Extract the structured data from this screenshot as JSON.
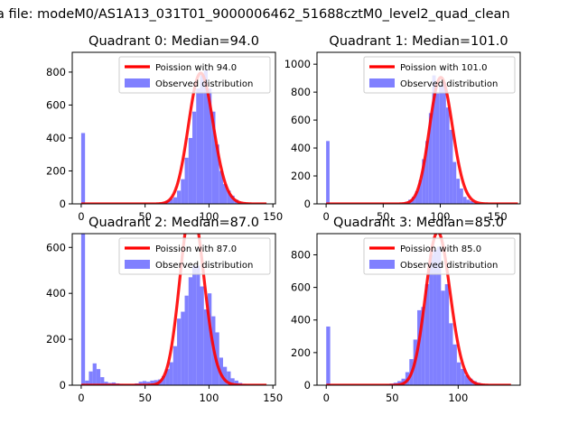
{
  "suptitle": "a file: modeM0/AS1A13_031T01_9000006462_51688cztM0_level2_quad_clean",
  "colors": {
    "hist": "#8080ff",
    "curve": "#ff0000",
    "axis": "#000000"
  },
  "chart_data": [
    {
      "type": "bar",
      "title": "Quadrant 0: Median=94.0",
      "median": 94.0,
      "xlim": [
        -7,
        152
      ],
      "ylim": [
        0,
        920
      ],
      "xticks": [
        "0",
        "50",
        "100",
        "150"
      ],
      "xtick_values": [
        0,
        50,
        100,
        150
      ],
      "yticks": [
        "0",
        "200",
        "400",
        "600",
        "800"
      ],
      "ytick_values": [
        0,
        200,
        400,
        600,
        800
      ],
      "legend_position": "top-right",
      "series": [
        {
          "name": "Poission with 94.0",
          "kind": "line",
          "mean": 94.0,
          "x_range": [
            0,
            145
          ]
        },
        {
          "name": "Observed distribution",
          "kind": "histogram",
          "bins": [
            [
              0,
              3,
              430
            ],
            [
              3,
              6,
              3
            ],
            [
              6,
              9,
              3
            ],
            [
              9,
              12,
              3
            ],
            [
              60,
              63,
              5
            ],
            [
              63,
              66,
              10
            ],
            [
              66,
              69,
              20
            ],
            [
              69,
              72,
              30
            ],
            [
              72,
              75,
              40
            ],
            [
              75,
              78,
              80
            ],
            [
              78,
              81,
              150
            ],
            [
              81,
              84,
              280
            ],
            [
              84,
              87,
              400
            ],
            [
              87,
              90,
              560
            ],
            [
              90,
              93,
              700
            ],
            [
              93,
              96,
              780
            ],
            [
              96,
              99,
              810
            ],
            [
              99,
              102,
              700
            ],
            [
              102,
              105,
              560
            ],
            [
              105,
              108,
              360
            ],
            [
              108,
              111,
              200
            ],
            [
              111,
              114,
              120
            ],
            [
              114,
              117,
              80
            ],
            [
              117,
              120,
              50
            ],
            [
              120,
              123,
              25
            ],
            [
              123,
              126,
              12
            ],
            [
              126,
              129,
              8
            ],
            [
              129,
              132,
              5
            ],
            [
              132,
              135,
              3
            ],
            [
              135,
              138,
              2
            ]
          ]
        }
      ]
    },
    {
      "type": "bar",
      "title": "Quadrant 1: Median=101.0",
      "median": 101.0,
      "xlim": [
        -8,
        170
      ],
      "ylim": [
        0,
        1085
      ],
      "xticks": [
        "0",
        "50",
        "100",
        "150"
      ],
      "xtick_values": [
        0,
        50,
        100,
        150
      ],
      "yticks": [
        "0",
        "200",
        "400",
        "600",
        "800",
        "1000"
      ],
      "ytick_values": [
        0,
        200,
        400,
        600,
        800,
        1000
      ],
      "legend_position": "top-right",
      "series": [
        {
          "name": "Poission with 101.0",
          "kind": "line",
          "mean": 101.0,
          "x_range": [
            0,
            168
          ]
        },
        {
          "name": "Observed distribution",
          "kind": "histogram",
          "bins": [
            [
              0,
              3,
              450
            ],
            [
              3,
              6,
              3
            ],
            [
              6,
              9,
              3
            ],
            [
              66,
              69,
              5
            ],
            [
              69,
              72,
              15
            ],
            [
              72,
              75,
              30
            ],
            [
              75,
              78,
              50
            ],
            [
              78,
              81,
              90
            ],
            [
              81,
              84,
              170
            ],
            [
              84,
              87,
              320
            ],
            [
              87,
              90,
              450
            ],
            [
              90,
              93,
              650
            ],
            [
              93,
              96,
              920
            ],
            [
              96,
              99,
              790
            ],
            [
              99,
              102,
              850
            ],
            [
              102,
              105,
              870
            ],
            [
              105,
              108,
              690
            ],
            [
              108,
              111,
              530
            ],
            [
              111,
              114,
              300
            ],
            [
              114,
              117,
              180
            ],
            [
              117,
              120,
              110
            ],
            [
              120,
              123,
              50
            ],
            [
              123,
              126,
              30
            ],
            [
              126,
              129,
              20
            ],
            [
              129,
              132,
              10
            ],
            [
              132,
              135,
              6
            ],
            [
              135,
              138,
              4
            ],
            [
              138,
              141,
              3
            ],
            [
              141,
              144,
              2
            ]
          ]
        }
      ]
    },
    {
      "type": "bar",
      "title": "Quadrant 2: Median=87.0",
      "median": 87.0,
      "xlim": [
        -7,
        152
      ],
      "ylim": [
        0,
        660
      ],
      "xticks": [
        "0",
        "50",
        "100",
        "150"
      ],
      "xtick_values": [
        0,
        50,
        100,
        150
      ],
      "yticks": [
        "0",
        "200",
        "400",
        "600"
      ],
      "ytick_values": [
        0,
        200,
        400,
        600
      ],
      "legend_position": "top-right",
      "series": [
        {
          "name": "Poission with 87.0",
          "kind": "line",
          "mean": 87.0,
          "x_range": [
            0,
            145
          ]
        },
        {
          "name": "Observed distribution",
          "kind": "histogram",
          "bins": [
            [
              0,
              3,
              680
            ],
            [
              3,
              6,
              20
            ],
            [
              6,
              9,
              60
            ],
            [
              9,
              12,
              95
            ],
            [
              12,
              15,
              70
            ],
            [
              15,
              18,
              35
            ],
            [
              18,
              21,
              15
            ],
            [
              21,
              24,
              10
            ],
            [
              24,
              27,
              12
            ],
            [
              27,
              30,
              8
            ],
            [
              30,
              33,
              6
            ],
            [
              33,
              36,
              5
            ],
            [
              36,
              39,
              5
            ],
            [
              39,
              42,
              5
            ],
            [
              42,
              45,
              8
            ],
            [
              45,
              48,
              15
            ],
            [
              48,
              51,
              18
            ],
            [
              51,
              54,
              15
            ],
            [
              54,
              57,
              20
            ],
            [
              57,
              60,
              22
            ],
            [
              60,
              63,
              25
            ],
            [
              63,
              66,
              40
            ],
            [
              66,
              69,
              70
            ],
            [
              69,
              72,
              100
            ],
            [
              72,
              75,
              170
            ],
            [
              75,
              78,
              290
            ],
            [
              78,
              81,
              320
            ],
            [
              81,
              84,
              390
            ],
            [
              84,
              87,
              470
            ],
            [
              87,
              90,
              520
            ],
            [
              90,
              93,
              520
            ],
            [
              93,
              96,
              430
            ],
            [
              96,
              99,
              330
            ],
            [
              99,
              102,
              400
            ],
            [
              102,
              105,
              300
            ],
            [
              105,
              108,
              230
            ],
            [
              108,
              111,
              120
            ],
            [
              111,
              114,
              80
            ],
            [
              114,
              117,
              60
            ],
            [
              117,
              120,
              30
            ],
            [
              120,
              123,
              20
            ],
            [
              123,
              126,
              10
            ],
            [
              126,
              129,
              6
            ],
            [
              129,
              132,
              3
            ],
            [
              132,
              135,
              2
            ]
          ]
        }
      ]
    },
    {
      "type": "bar",
      "title": "Quadrant 3: Median=85.0",
      "median": 85.0,
      "xlim": [
        -7,
        147
      ],
      "ylim": [
        0,
        930
      ],
      "xticks": [
        "0",
        "50",
        "100"
      ],
      "xtick_values": [
        0,
        50,
        100
      ],
      "yticks": [
        "0",
        "200",
        "400",
        "600",
        "800"
      ],
      "ytick_values": [
        0,
        200,
        400,
        600,
        800
      ],
      "legend_position": "top-right",
      "series": [
        {
          "name": "Poission with 85.0",
          "kind": "line",
          "mean": 85.0,
          "x_range": [
            0,
            140
          ]
        },
        {
          "name": "Observed distribution",
          "kind": "histogram",
          "bins": [
            [
              0,
              3,
              360
            ],
            [
              3,
              6,
              3
            ],
            [
              45,
              48,
              5
            ],
            [
              48,
              51,
              10
            ],
            [
              51,
              54,
              15
            ],
            [
              54,
              57,
              25
            ],
            [
              57,
              60,
              40
            ],
            [
              60,
              63,
              80
            ],
            [
              63,
              66,
              160
            ],
            [
              66,
              69,
              280
            ],
            [
              69,
              72,
              460
            ],
            [
              72,
              75,
              480
            ],
            [
              75,
              78,
              620
            ],
            [
              78,
              81,
              800
            ],
            [
              81,
              84,
              830
            ],
            [
              84,
              87,
              850
            ],
            [
              87,
              90,
              580
            ],
            [
              90,
              93,
              620
            ],
            [
              93,
              96,
              380
            ],
            [
              96,
              99,
              250
            ],
            [
              99,
              102,
              140
            ],
            [
              102,
              105,
              100
            ],
            [
              105,
              108,
              60
            ],
            [
              108,
              111,
              40
            ],
            [
              111,
              114,
              25
            ],
            [
              114,
              117,
              15
            ],
            [
              117,
              120,
              8
            ],
            [
              120,
              123,
              4
            ],
            [
              123,
              126,
              2
            ]
          ]
        }
      ]
    }
  ]
}
